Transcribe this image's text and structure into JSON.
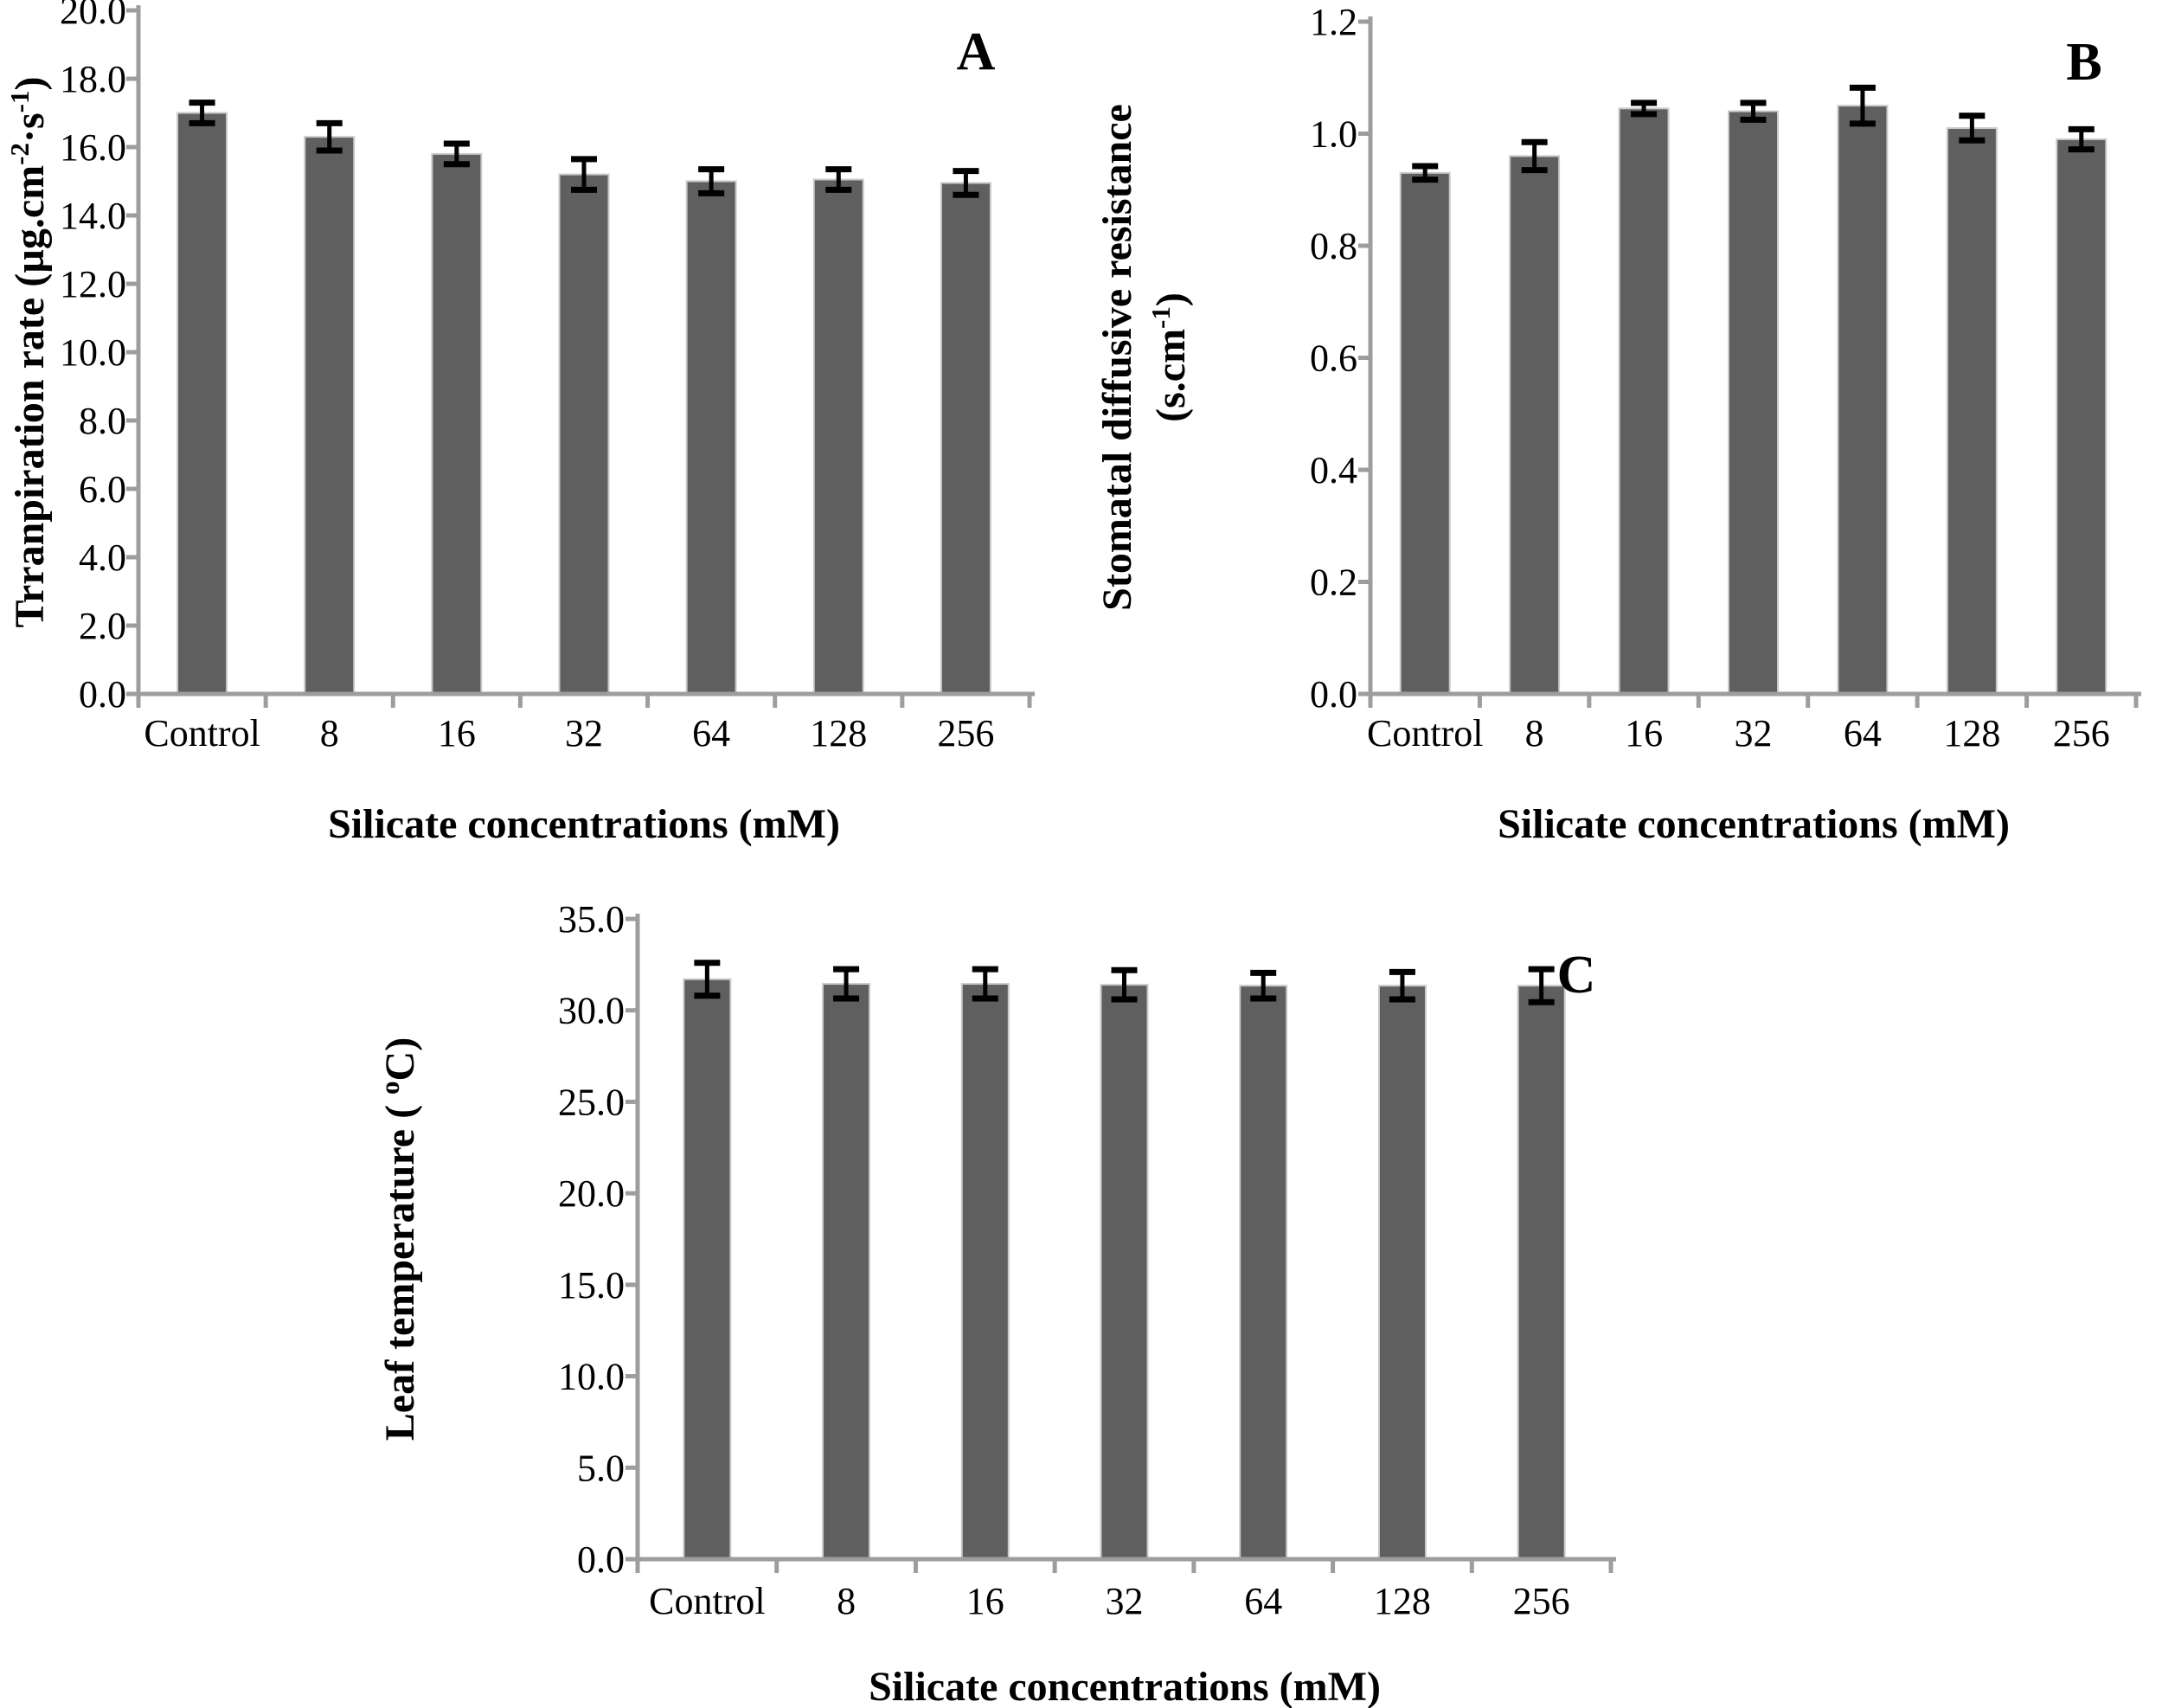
{
  "page": {
    "background": "#ffffff"
  },
  "colors": {
    "bar_fill": "#5f5f5f",
    "bar_border": "#c9c9c9",
    "axis": "#9d9d9d",
    "error_bar": "#000000",
    "text": "#000000"
  },
  "chart_data": [
    {
      "panel": "A",
      "type": "bar",
      "categories": [
        "Control",
        "8",
        "16",
        "32",
        "64",
        "128",
        "256"
      ],
      "values": [
        17.0,
        16.3,
        15.8,
        15.2,
        15.0,
        15.05,
        14.95
      ],
      "errors": [
        0.3,
        0.4,
        0.3,
        0.45,
        0.35,
        0.3,
        0.35
      ],
      "xlabel": "Silicate  concentrations (mM)",
      "ylabel_lines": [
        [
          {
            "t": "text",
            "v": "Trranpiration rate (µg.cm"
          },
          {
            "t": "sup",
            "v": "-2"
          },
          {
            "t": "text",
            "v": "·s"
          },
          {
            "t": "sup",
            "v": "-1"
          },
          {
            "t": "text",
            "v": ")"
          }
        ]
      ],
      "ylim": [
        0,
        20
      ],
      "ytick_step": 2,
      "tick_decimals": 1,
      "grid": false,
      "legend": false
    },
    {
      "panel": "B",
      "type": "bar",
      "categories": [
        "Control",
        "8",
        "16",
        "32",
        "64",
        "128",
        "256"
      ],
      "values": [
        0.93,
        0.96,
        1.045,
        1.04,
        1.05,
        1.01,
        0.99
      ],
      "errors": [
        0.012,
        0.025,
        0.01,
        0.015,
        0.032,
        0.022,
        0.018
      ],
      "xlabel": "Silicate concentrations (mM)",
      "ylabel_lines": [
        [
          {
            "t": "text",
            "v": "Stomatal diffusive resistance"
          }
        ],
        [
          {
            "t": "text",
            "v": "(s.cm"
          },
          {
            "t": "sup",
            "v": "-1"
          },
          {
            "t": "text",
            "v": ")"
          }
        ]
      ],
      "ylim": [
        0,
        1.2
      ],
      "ytick_step": 0.2,
      "tick_decimals": 1,
      "grid": false,
      "legend": false
    },
    {
      "panel": "C",
      "type": "bar",
      "categories": [
        "Control",
        "8",
        "16",
        "32",
        "64",
        "128",
        "256"
      ],
      "values": [
        31.7,
        31.45,
        31.45,
        31.4,
        31.35,
        31.35,
        31.35
      ],
      "errors": [
        0.9,
        0.8,
        0.8,
        0.8,
        0.7,
        0.75,
        0.9
      ],
      "xlabel": "Silicate concentrations  (mM)",
      "ylabel_lines": [
        [
          {
            "t": "text",
            "v": "Leaf temperature ( "
          },
          {
            "t": "sup",
            "v": "o"
          },
          {
            "t": "text",
            "v": "C)"
          }
        ]
      ],
      "ylim": [
        0,
        35
      ],
      "ytick_step": 5,
      "tick_decimals": 1,
      "grid": false,
      "legend": false
    }
  ]
}
